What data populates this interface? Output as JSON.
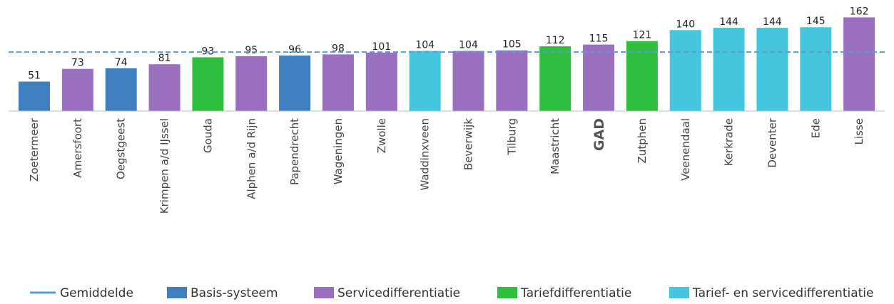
{
  "chart_data": {
    "type": "bar",
    "categories": [
      "Zoetermeer",
      "Amersfoort",
      "Oegstgeest",
      "Krimpen a/d IJssel",
      "Gouda",
      "Alphen a/d Rijn",
      "Papendrecht",
      "Wageningen",
      "Zwolle",
      "Waddinxveen",
      "Beverwijk",
      "Tilburg",
      "Maastricht",
      "GAD",
      "Zutphen",
      "Veenendaal",
      "Kerkrade",
      "Deventer",
      "Ede",
      "Lisse"
    ],
    "values": [
      51,
      73,
      74,
      81,
      93,
      95,
      96,
      98,
      101,
      104,
      104,
      105,
      112,
      115,
      121,
      140,
      144,
      144,
      145,
      162
    ],
    "groups": [
      "Basis-systeem",
      "Servicedifferentiatie",
      "Basis-systeem",
      "Servicedifferentiatie",
      "Tariefdifferentiatie",
      "Servicedifferentiatie",
      "Basis-systeem",
      "Servicedifferentiatie",
      "Servicedifferentiatie",
      "Tarief- en servicedifferentiatie",
      "Servicedifferentiatie",
      "Servicedifferentiatie",
      "Tariefdifferentiatie",
      "Servicedifferentiatie",
      "Tariefdifferentiatie",
      "Tarief- en servicedifferentiatie",
      "Tarief- en servicedifferentiatie",
      "Tarief- en servicedifferentiatie",
      "Tarief- en servicedifferentiatie",
      "Servicedifferentiatie"
    ],
    "highlight": "GAD",
    "average": 102,
    "ylim": [
      0,
      165
    ],
    "grid": false,
    "legend_position": "bottom",
    "legend": [
      {
        "label": "Gemiddelde",
        "type": "line",
        "color": "#5b9bd5"
      },
      {
        "label": "Basis-systeem",
        "type": "box",
        "color": "#3f7fbf"
      },
      {
        "label": "Servicedifferentiatie",
        "type": "box",
        "color": "#9a6fbf"
      },
      {
        "label": "Tariefdifferentiatie",
        "type": "box",
        "color": "#2fbf3f"
      },
      {
        "label": "Tarief- en servicedifferentiatie",
        "type": "box",
        "color": "#45c6df"
      }
    ],
    "colors": {
      "Basis-systeem": "#3f7fbf",
      "Servicedifferentiatie": "#9a6fbf",
      "Tariefdifferentiatie": "#2fbf3f",
      "Tarief- en servicedifferentiatie": "#45c6df",
      "Gemiddelde": "#5b9bd5"
    }
  }
}
